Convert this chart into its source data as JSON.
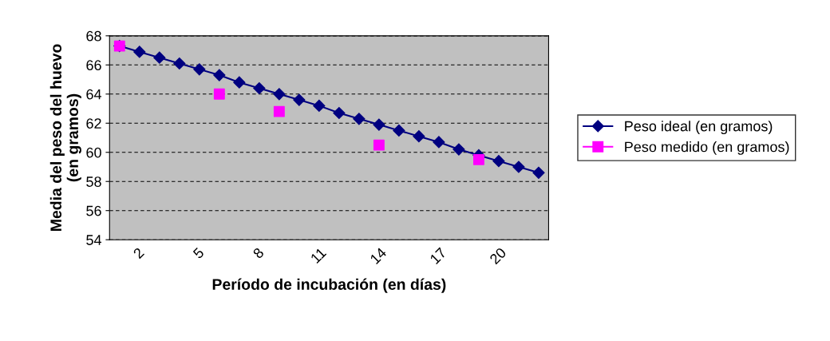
{
  "chart_data": {
    "type": "line",
    "xlabel": "Período de incubación (en días)",
    "ylabel": "Media del peso del huevo\n(en gramos)",
    "categories": [
      null,
      "2",
      null,
      null,
      "5",
      null,
      null,
      "8",
      null,
      null,
      "11",
      null,
      null,
      "14",
      null,
      null,
      "17",
      null,
      null,
      "20",
      null,
      null
    ],
    "series": [
      {
        "name": "Peso ideal (en gramos)",
        "color": "#000080",
        "marker": "diamond",
        "values": [
          67.3,
          66.9,
          66.5,
          66.1,
          65.7,
          65.3,
          64.8,
          64.4,
          64.0,
          63.6,
          63.2,
          62.7,
          62.3,
          61.9,
          61.5,
          61.1,
          60.7,
          60.2,
          59.8,
          59.4,
          59.0,
          58.6
        ]
      },
      {
        "name": "Peso medido (en gramos)",
        "color": "#ff00ff",
        "type": "scatter",
        "marker": "square",
        "values": [
          67.3,
          null,
          null,
          null,
          null,
          64.0,
          null,
          null,
          62.8,
          null,
          null,
          null,
          null,
          60.5,
          null,
          null,
          null,
          null,
          59.5,
          null,
          null,
          null
        ]
      }
    ],
    "ylim": [
      54,
      68
    ],
    "yticks": [
      54,
      56,
      58,
      60,
      62,
      64,
      66,
      68
    ],
    "grid": "y",
    "legend": "right"
  }
}
